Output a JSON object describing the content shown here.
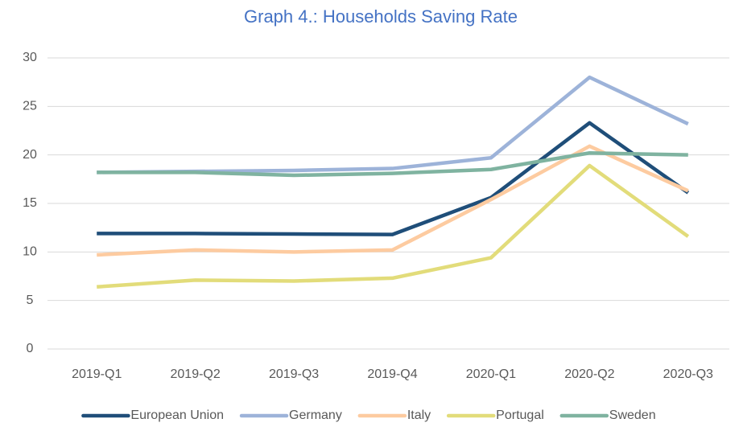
{
  "chart_data": {
    "type": "line",
    "title": "Graph 4.: Households Saving Rate",
    "categories": [
      "2019-Q1",
      "2019-Q2",
      "2019-Q3",
      "2019-Q4",
      "2020-Q1",
      "2020-Q2",
      "2020-Q3"
    ],
    "series": [
      {
        "name": "European Union",
        "color": "#1f4e79",
        "values": [
          11.9,
          11.9,
          11.85,
          11.8,
          15.6,
          23.3,
          16.1
        ]
      },
      {
        "name": "Germany",
        "color": "#9db3d9",
        "values": [
          18.2,
          18.3,
          18.4,
          18.6,
          19.7,
          28.0,
          23.2
        ]
      },
      {
        "name": "Italy",
        "color": "#fdcba0",
        "values": [
          9.7,
          10.2,
          10.0,
          10.2,
          15.4,
          20.9,
          16.3
        ]
      },
      {
        "name": "Portugal",
        "color": "#e2dc7a",
        "values": [
          6.4,
          7.1,
          7.0,
          7.3,
          9.4,
          18.9,
          11.6
        ]
      },
      {
        "name": "Sweden",
        "color": "#7fb3a0",
        "values": [
          18.2,
          18.2,
          17.9,
          18.1,
          18.5,
          20.2,
          20.0
        ]
      }
    ],
    "ylim": [
      0,
      30
    ],
    "yticks": [
      0,
      5,
      10,
      15,
      20,
      25,
      30
    ],
    "grid": true,
    "legend": "bottom"
  }
}
